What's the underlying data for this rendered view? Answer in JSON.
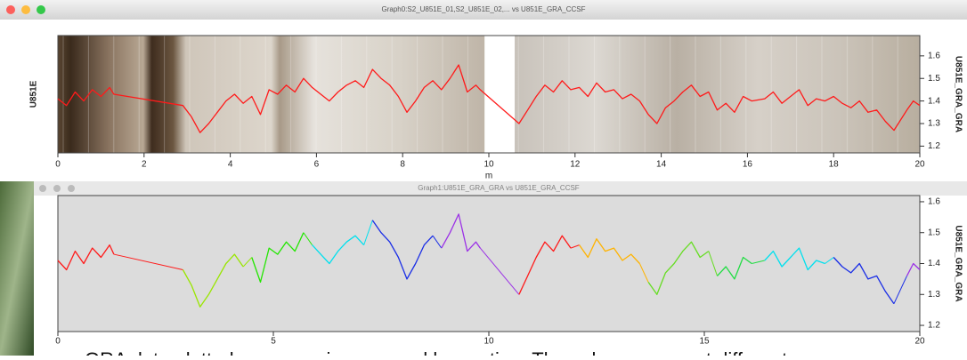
{
  "chart_data": [
    {
      "type": "line",
      "window_title": "Graph0:S2_U851E_01,S2_U851E_02,... vs U851E_GRA_CCSF",
      "xlabel": "m",
      "ylabel": "U851E",
      "y2label": "U851E_GRA_GRA",
      "background": "core-images",
      "xlim": [
        0,
        20
      ],
      "xticks": [
        0,
        2,
        4,
        6,
        8,
        10,
        12,
        14,
        16,
        18,
        20
      ],
      "ylim": [
        1.17,
        1.69
      ],
      "yticks": [
        1.2,
        1.3,
        1.4,
        1.5,
        1.6
      ],
      "series": [
        {
          "color": "#ff1a1a",
          "x": [
            0,
            0.2,
            0.4,
            0.6,
            0.8,
            1.0,
            1.2,
            1.3,
            2.9,
            3.1,
            3.3,
            3.5,
            3.7,
            3.9,
            4.1,
            4.3,
            4.5,
            4.7,
            4.9,
            5.1,
            5.3,
            5.5,
            5.7,
            5.9,
            6.1,
            6.3,
            6.5,
            6.7,
            6.9,
            7.1,
            7.3,
            7.5,
            7.7,
            7.9,
            8.1,
            8.3,
            8.5,
            8.7,
            8.9,
            9.1,
            9.3,
            9.5,
            9.7,
            9.8,
            10.7,
            10.9,
            11.1,
            11.3,
            11.5,
            11.7,
            11.9,
            12.1,
            12.3,
            12.5,
            12.7,
            12.9,
            13.1,
            13.3,
            13.5,
            13.7,
            13.9,
            14.1,
            14.3,
            14.5,
            14.7,
            14.9,
            15.1,
            15.3,
            15.5,
            15.7,
            15.9,
            16.1,
            16.4,
            16.6,
            16.8,
            17.0,
            17.2,
            17.4,
            17.6,
            17.8,
            18.0,
            18.2,
            18.4,
            18.6,
            18.8,
            19.0,
            19.2,
            19.4,
            19.7,
            19.85,
            20
          ],
          "values": [
            1.41,
            1.38,
            1.44,
            1.4,
            1.45,
            1.42,
            1.46,
            1.43,
            1.38,
            1.33,
            1.26,
            1.3,
            1.35,
            1.4,
            1.43,
            1.39,
            1.42,
            1.34,
            1.45,
            1.43,
            1.47,
            1.44,
            1.5,
            1.46,
            1.43,
            1.4,
            1.44,
            1.47,
            1.49,
            1.46,
            1.54,
            1.5,
            1.47,
            1.42,
            1.35,
            1.4,
            1.46,
            1.49,
            1.45,
            1.5,
            1.56,
            1.44,
            1.47,
            1.45,
            1.3,
            1.36,
            1.42,
            1.47,
            1.44,
            1.49,
            1.45,
            1.46,
            1.42,
            1.48,
            1.44,
            1.45,
            1.41,
            1.43,
            1.4,
            1.34,
            1.3,
            1.37,
            1.4,
            1.44,
            1.47,
            1.42,
            1.44,
            1.36,
            1.39,
            1.35,
            1.42,
            1.4,
            1.41,
            1.44,
            1.39,
            1.42,
            1.45,
            1.38,
            1.41,
            1.4,
            1.42,
            1.39,
            1.37,
            1.4,
            1.35,
            1.36,
            1.31,
            1.27,
            1.36,
            1.4,
            1.38
          ]
        }
      ]
    },
    {
      "type": "line",
      "window_title": "Graph1:U851E_GRA_GRA vs U851E_GRA_CCSF",
      "y2label": "U851E_GRA_GRA",
      "background": "#dcdcdc",
      "xlim": [
        0,
        20
      ],
      "xticks": [
        0,
        5,
        10,
        15,
        20
      ],
      "ylim": [
        1.18,
        1.62
      ],
      "yticks": [
        1.2,
        1.3,
        1.4,
        1.5,
        1.6
      ],
      "series": [
        {
          "color": "#ff1a1a",
          "x": [
            0,
            0.2,
            0.4,
            0.6,
            0.8,
            1.0,
            1.2,
            1.3
          ],
          "values": [
            1.41,
            1.38,
            1.44,
            1.4,
            1.45,
            1.42,
            1.46,
            1.43
          ]
        },
        {
          "color": "#99e600",
          "x": [
            2.9,
            3.1,
            3.3,
            3.5,
            3.7,
            3.9,
            4.1,
            4.3
          ],
          "values": [
            1.38,
            1.33,
            1.26,
            1.3,
            1.35,
            1.4,
            1.43,
            1.39
          ]
        },
        {
          "color": "#22e600",
          "x": [
            4.5,
            4.7,
            4.9,
            5.1,
            5.3,
            5.5,
            5.7
          ],
          "values": [
            1.42,
            1.34,
            1.45,
            1.43,
            1.47,
            1.44,
            1.5
          ]
        },
        {
          "color": "#00e0ee",
          "x": [
            5.9,
            6.1,
            6.3,
            6.5,
            6.7,
            6.9,
            7.1
          ],
          "values": [
            1.46,
            1.43,
            1.4,
            1.44,
            1.47,
            1.49,
            1.46
          ]
        },
        {
          "color": "#1a2ee6",
          "x": [
            7.3,
            7.5,
            7.7,
            7.9,
            8.1,
            8.3,
            8.5,
            8.7
          ],
          "values": [
            1.54,
            1.5,
            1.47,
            1.42,
            1.35,
            1.4,
            1.46,
            1.49
          ]
        },
        {
          "color": "#9b30e6",
          "x": [
            8.9,
            9.1,
            9.3,
            9.5,
            9.7,
            9.8
          ],
          "values": [
            1.45,
            1.5,
            1.56,
            1.44,
            1.47,
            1.45
          ]
        },
        {
          "color": "#ff1a1a",
          "x": [
            10.7,
            10.9,
            11.1,
            11.3,
            11.5,
            11.7,
            11.9
          ],
          "values": [
            1.3,
            1.36,
            1.42,
            1.47,
            1.44,
            1.49,
            1.45
          ]
        },
        {
          "color": "#ffb300",
          "x": [
            12.1,
            12.3,
            12.5,
            12.7,
            12.9,
            13.1,
            13.3,
            13.5
          ],
          "values": [
            1.46,
            1.42,
            1.48,
            1.44,
            1.45,
            1.41,
            1.43,
            1.4
          ]
        },
        {
          "color": "#66dd22",
          "x": [
            13.7,
            13.9,
            14.1,
            14.3,
            14.5,
            14.7,
            14.9,
            15.1
          ],
          "values": [
            1.34,
            1.3,
            1.37,
            1.4,
            1.44,
            1.47,
            1.42,
            1.44
          ]
        },
        {
          "color": "#22dd44",
          "x": [
            15.3,
            15.5,
            15.7,
            15.9,
            16.1
          ],
          "values": [
            1.36,
            1.39,
            1.35,
            1.42,
            1.4
          ]
        },
        {
          "color": "#00e0ee",
          "x": [
            16.4,
            16.6,
            16.8,
            17.0,
            17.2,
            17.4,
            17.6,
            17.8
          ],
          "values": [
            1.41,
            1.44,
            1.39,
            1.42,
            1.45,
            1.38,
            1.41,
            1.4
          ]
        },
        {
          "color": "#1a2ee6",
          "x": [
            18.0,
            18.2,
            18.4,
            18.6,
            18.8,
            19.0,
            19.2,
            19.4
          ],
          "values": [
            1.42,
            1.39,
            1.37,
            1.4,
            1.35,
            1.36,
            1.31,
            1.27
          ]
        },
        {
          "color": "#9b30e6",
          "x": [
            19.7,
            19.85,
            20
          ],
          "values": [
            1.36,
            1.4,
            1.38
          ]
        }
      ]
    }
  ],
  "caption": "GRA data plotted over core images and by section. The colors represent different"
}
